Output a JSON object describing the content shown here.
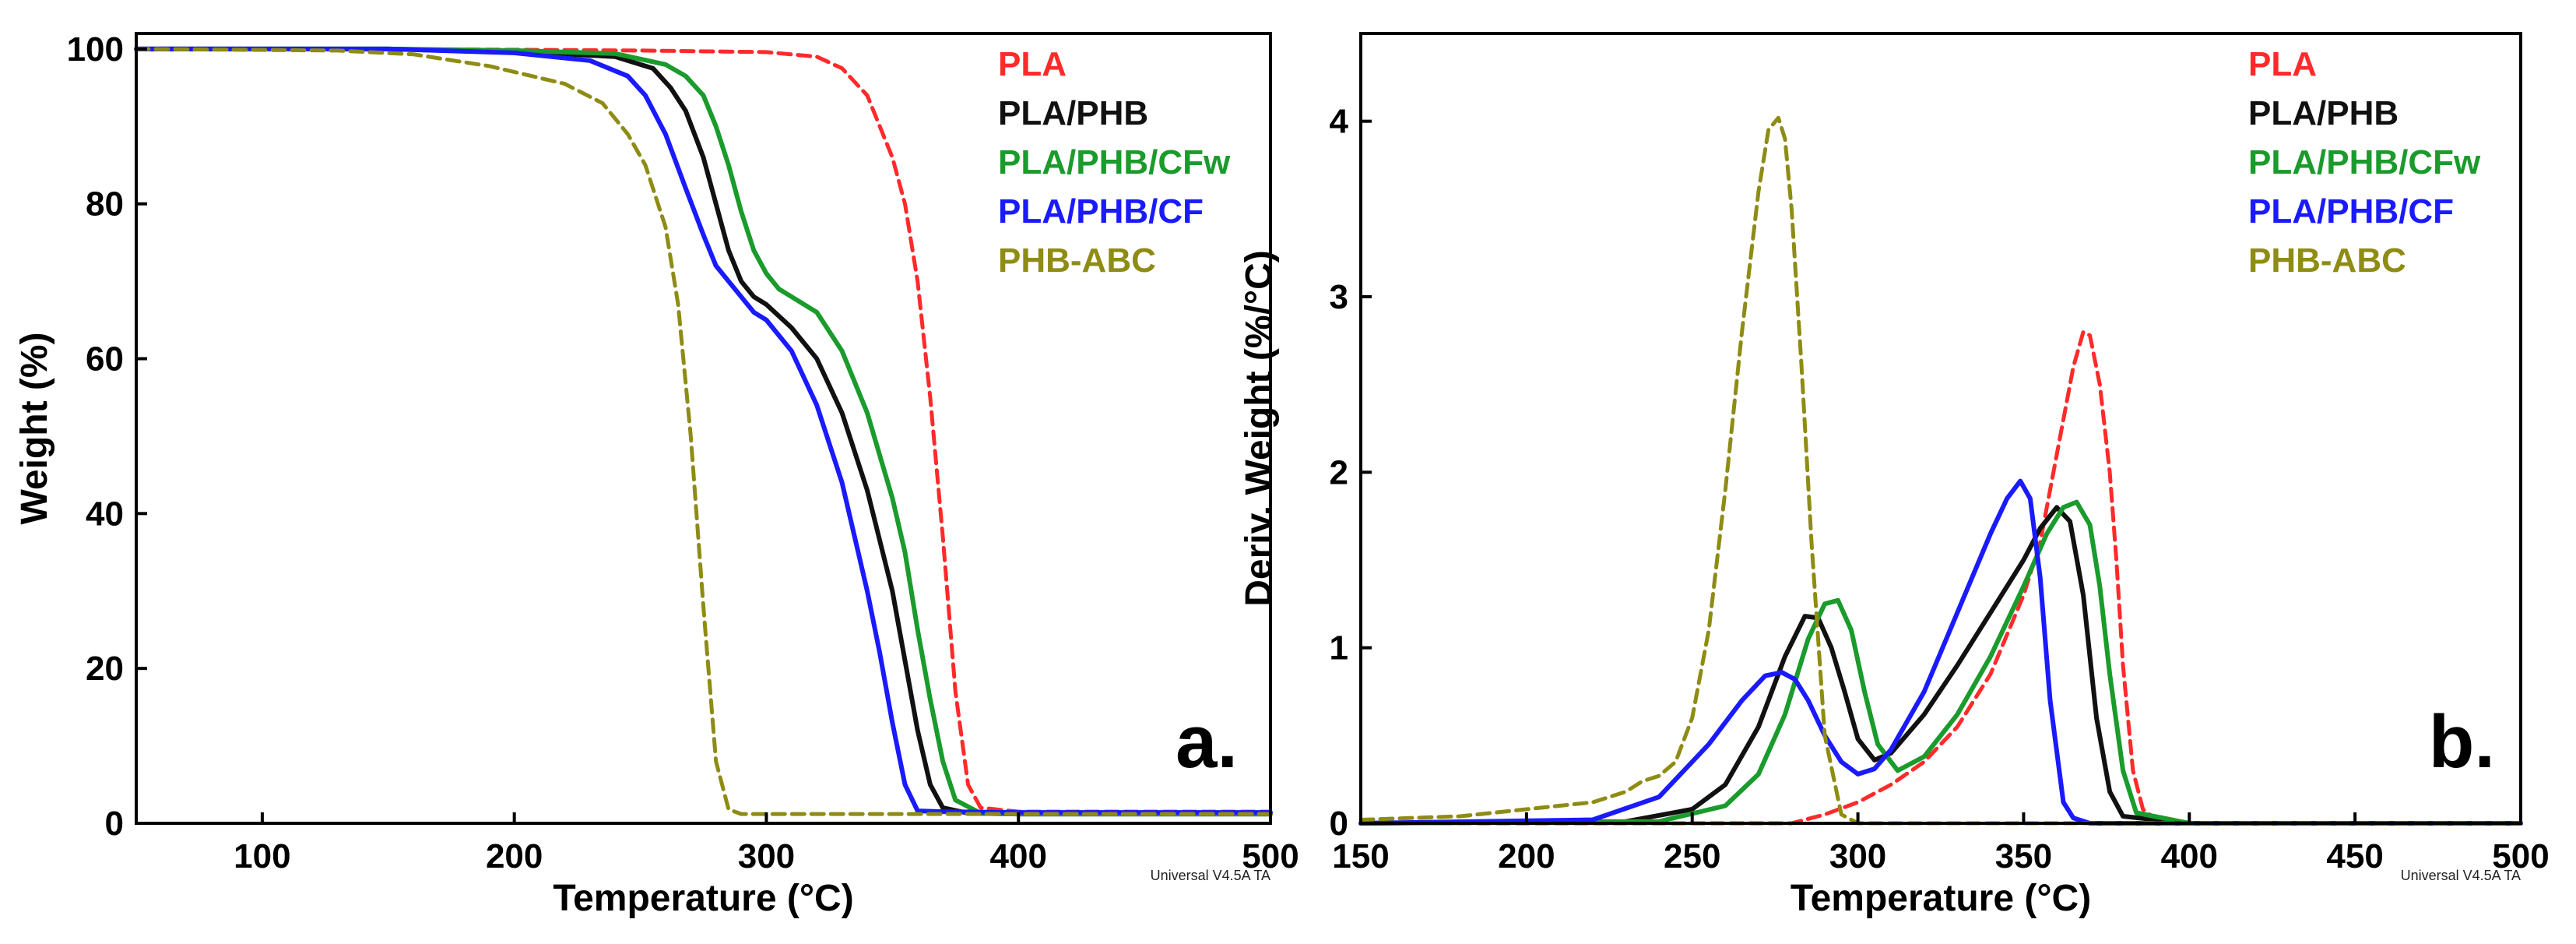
{
  "chart_data": [
    {
      "type": "line",
      "panel_label": "a.",
      "xlabel": "Temperature (°C)",
      "ylabel": "Weight (%)",
      "xlim": [
        50,
        500
      ],
      "ylim": [
        0,
        102
      ],
      "xticks": [
        100,
        200,
        300,
        400,
        500
      ],
      "yticks": [
        0,
        20,
        40,
        60,
        80,
        100
      ],
      "legend_position": "top-right",
      "footnote": "Universal V4.5A TA",
      "series": [
        {
          "name": "PLA",
          "color": "#ff2a2a",
          "dashed": true,
          "x": [
            50,
            150,
            250,
            300,
            320,
            330,
            340,
            350,
            355,
            360,
            365,
            370,
            375,
            380,
            385,
            400,
            500
          ],
          "y": [
            100,
            100,
            99.8,
            99.6,
            99,
            97.5,
            94,
            86,
            80,
            70,
            55,
            37,
            17,
            5,
            2,
            1.5,
            1.5
          ]
        },
        {
          "name": "PLA/PHB",
          "color": "#111111",
          "dashed": false,
          "x": [
            50,
            150,
            200,
            240,
            255,
            262,
            268,
            275,
            280,
            285,
            290,
            295,
            300,
            310,
            320,
            330,
            340,
            350,
            355,
            360,
            365,
            370,
            380,
            400,
            500
          ],
          "y": [
            100,
            100,
            99.7,
            99,
            97.5,
            95,
            92,
            86,
            80,
            74,
            70,
            68,
            67,
            64,
            60,
            53,
            43,
            30,
            21,
            12,
            5,
            2,
            1.3,
            1.2,
            1.2
          ]
        },
        {
          "name": "PLA/PHB/CFw",
          "color": "#1a9b2c",
          "dashed": false,
          "x": [
            50,
            150,
            200,
            240,
            260,
            268,
            275,
            280,
            285,
            290,
            295,
            300,
            305,
            310,
            320,
            330,
            340,
            350,
            355,
            360,
            365,
            370,
            375,
            385,
            400,
            500
          ],
          "y": [
            100,
            100,
            99.8,
            99.4,
            98,
            96.5,
            94,
            90,
            85,
            79,
            74,
            71,
            69,
            68,
            66,
            61,
            53,
            42,
            35,
            25,
            16,
            8,
            3,
            1.3,
            1.2,
            1.2
          ]
        },
        {
          "name": "PLA/PHB/CF",
          "color": "#1a1aff",
          "dashed": false,
          "x": [
            50,
            150,
            200,
            230,
            245,
            252,
            260,
            268,
            275,
            280,
            285,
            290,
            295,
            300,
            310,
            320,
            330,
            340,
            345,
            350,
            355,
            360,
            370,
            400,
            500
          ],
          "y": [
            100,
            100,
            99.5,
            98.5,
            96.5,
            94,
            89,
            82,
            76,
            72,
            70,
            68,
            66,
            65,
            61,
            54,
            44,
            30,
            22,
            13,
            5,
            1.6,
            1.5,
            1.4,
            1.4
          ]
        },
        {
          "name": "PHB-ABC",
          "color": "#8e8c14",
          "dashed": true,
          "x": [
            50,
            130,
            160,
            190,
            220,
            235,
            245,
            252,
            260,
            265,
            270,
            275,
            280,
            285,
            290,
            300,
            400,
            500
          ],
          "y": [
            100,
            99.8,
            99.3,
            97.8,
            95.5,
            93,
            89,
            85,
            77,
            67,
            50,
            28,
            8,
            1.8,
            1.2,
            1.2,
            1.2,
            1.2
          ]
        }
      ]
    },
    {
      "type": "line",
      "panel_label": "b.",
      "xlabel": "Temperature (°C)",
      "ylabel": "Deriv. Weight (%/°C)",
      "xlim": [
        150,
        500
      ],
      "ylim": [
        0,
        4.5
      ],
      "xticks": [
        150,
        200,
        250,
        300,
        350,
        400,
        450,
        500
      ],
      "yticks": [
        0,
        1,
        2,
        3,
        4
      ],
      "legend_position": "top-right",
      "footnote": "Universal V4.5A TA",
      "series": [
        {
          "name": "PLA",
          "color": "#ff2a2a",
          "dashed": true,
          "x": [
            150,
            280,
            290,
            300,
            310,
            320,
            330,
            340,
            350,
            355,
            360,
            365,
            368,
            370,
            373,
            376,
            378,
            380,
            383,
            386,
            390,
            400,
            500
          ],
          "y": [
            0,
            0,
            0.05,
            0.12,
            0.22,
            0.35,
            0.55,
            0.85,
            1.3,
            1.6,
            2.1,
            2.6,
            2.8,
            2.78,
            2.5,
            2.0,
            1.5,
            0.9,
            0.3,
            0.08,
            0.02,
            0,
            0
          ]
        },
        {
          "name": "PLA/PHB",
          "color": "#111111",
          "dashed": false,
          "x": [
            150,
            230,
            250,
            260,
            270,
            278,
            284,
            288,
            292,
            296,
            300,
            305,
            310,
            320,
            330,
            340,
            350,
            355,
            360,
            364,
            368,
            372,
            376,
            380,
            400,
            500
          ],
          "y": [
            0,
            0.01,
            0.08,
            0.22,
            0.55,
            0.95,
            1.18,
            1.17,
            1.0,
            0.75,
            0.48,
            0.36,
            0.4,
            0.62,
            0.9,
            1.2,
            1.5,
            1.68,
            1.8,
            1.72,
            1.3,
            0.6,
            0.18,
            0.04,
            0,
            0
          ]
        },
        {
          "name": "PLA/PHB/CFw",
          "color": "#1a9b2c",
          "dashed": false,
          "x": [
            150,
            240,
            260,
            270,
            278,
            285,
            290,
            294,
            298,
            302,
            306,
            312,
            320,
            330,
            340,
            350,
            357,
            362,
            366,
            370,
            373,
            376,
            380,
            384,
            400,
            500
          ],
          "y": [
            0,
            0.01,
            0.1,
            0.28,
            0.62,
            1.05,
            1.25,
            1.27,
            1.1,
            0.75,
            0.45,
            0.3,
            0.38,
            0.62,
            0.95,
            1.35,
            1.65,
            1.8,
            1.83,
            1.7,
            1.35,
            0.85,
            0.3,
            0.06,
            0,
            0
          ]
        },
        {
          "name": "PLA/PHB/CF",
          "color": "#1a1aff",
          "dashed": false,
          "x": [
            150,
            220,
            240,
            255,
            265,
            272,
            277,
            281,
            285,
            290,
            295,
            300,
            305,
            310,
            320,
            330,
            340,
            345,
            349,
            352,
            355,
            358,
            362,
            365,
            370,
            500
          ],
          "y": [
            0,
            0.02,
            0.15,
            0.45,
            0.7,
            0.84,
            0.86,
            0.82,
            0.7,
            0.5,
            0.35,
            0.28,
            0.31,
            0.42,
            0.75,
            1.2,
            1.65,
            1.85,
            1.95,
            1.85,
            1.4,
            0.7,
            0.12,
            0.03,
            0,
            0
          ]
        },
        {
          "name": "PHB-ABC",
          "color": "#8e8c14",
          "dashed": true,
          "x": [
            150,
            180,
            200,
            220,
            230,
            235,
            240,
            245,
            250,
            255,
            260,
            265,
            270,
            273,
            276,
            278,
            280,
            283,
            286,
            290,
            295,
            300,
            500
          ],
          "y": [
            0.02,
            0.04,
            0.08,
            0.12,
            0.18,
            0.24,
            0.27,
            0.35,
            0.6,
            1.1,
            1.9,
            2.8,
            3.6,
            3.95,
            4.02,
            3.9,
            3.5,
            2.6,
            1.6,
            0.5,
            0.05,
            0,
            0
          ]
        }
      ]
    }
  ]
}
